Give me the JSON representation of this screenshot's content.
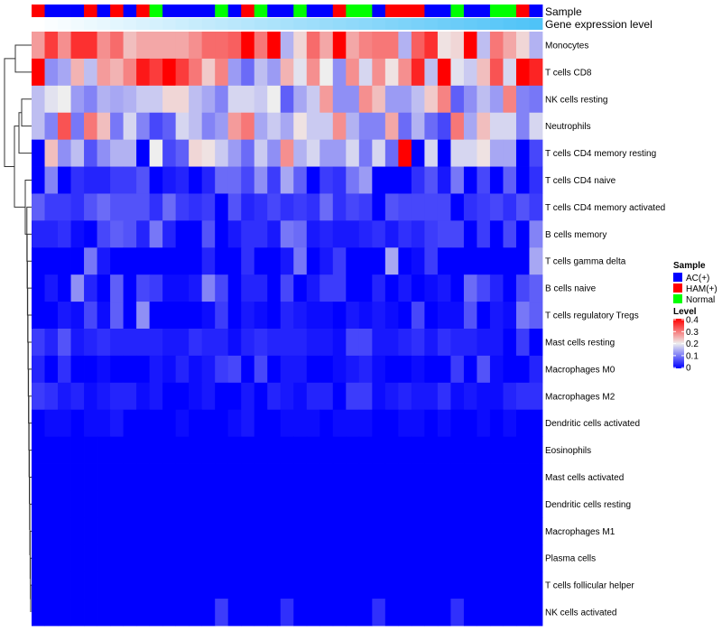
{
  "chart_data": {
    "type": "heatmap",
    "legend_position": "right",
    "annotations": {
      "sample_label": "Sample",
      "gene_label": "Gene expression level",
      "sample": [
        "HAM(+)",
        "AC(+)",
        "AC(+)",
        "AC(+)",
        "HAM(+)",
        "AC(+)",
        "HAM(+)",
        "AC(+)",
        "HAM(+)",
        "Normal",
        "AC(+)",
        "AC(+)",
        "AC(+)",
        "AC(+)",
        "Normal",
        "AC(+)",
        "HAM(+)",
        "Normal",
        "AC(+)",
        "AC(+)",
        "Normal",
        "AC(+)",
        "AC(+)",
        "HAM(+)",
        "Normal",
        "Normal",
        "AC(+)",
        "HAM(+)",
        "HAM(+)",
        "HAM(+)",
        "AC(+)",
        "AC(+)",
        "Normal",
        "AC(+)",
        "AC(+)",
        "Normal",
        "Normal",
        "HAM(+)",
        "AC(+)"
      ],
      "gene_expression_rank": [
        0,
        1,
        2,
        3,
        4,
        5,
        6,
        7,
        8,
        9,
        10,
        11,
        12,
        13,
        14,
        15,
        16,
        17,
        18,
        19,
        20,
        21,
        22,
        23,
        24,
        25,
        26,
        27,
        28,
        29,
        30,
        31,
        32,
        33,
        34,
        35,
        36,
        37,
        38
      ]
    },
    "legend": {
      "sample_title": "Sample",
      "sample_items": [
        {
          "label": "AC(+)",
          "color": "#0000FF"
        },
        {
          "label": "HAM(+)",
          "color": "#FF0000"
        },
        {
          "label": "Normal",
          "color": "#00FF00"
        }
      ],
      "level_title": "Level",
      "level_ticks": [
        "0.4",
        "0.3",
        "0.2",
        "0.1",
        "0"
      ],
      "level_range": [
        0,
        0.4
      ],
      "colors": {
        "low": "#0000FF",
        "mid": "#EEEEEE",
        "high": "#FF0000"
      }
    },
    "rows": [
      {
        "label": "Monocytes",
        "values": [
          0.27,
          0.35,
          0.28,
          0.36,
          0.36,
          0.28,
          0.31,
          0.24,
          0.26,
          0.26,
          0.26,
          0.26,
          0.28,
          0.31,
          0.31,
          0.32,
          0.4,
          0.3,
          0.4,
          0.15,
          0.22,
          0.31,
          0.26,
          0.4,
          0.26,
          0.29,
          0.3,
          0.3,
          0.15,
          0.32,
          0.36,
          0.21,
          0.22,
          0.4,
          0.16,
          0.3,
          0.26,
          0.22,
          0.15
        ]
      },
      {
        "label": "T cells CD8",
        "values": [
          0.4,
          0.12,
          0.14,
          0.25,
          0.16,
          0.27,
          0.25,
          0.29,
          0.38,
          0.35,
          0.4,
          0.35,
          0.3,
          0.23,
          0.29,
          0.13,
          0.09,
          0.16,
          0.13,
          0.25,
          0.19,
          0.28,
          0.2,
          0.12,
          0.28,
          0.18,
          0.28,
          0.21,
          0.28,
          0.37,
          0.16,
          0.4,
          0.19,
          0.17,
          0.24,
          0.33,
          0.18,
          0.4,
          0.37
        ]
      },
      {
        "label": "NK cells resting",
        "values": [
          0.16,
          0.19,
          0.2,
          0.13,
          0.11,
          0.15,
          0.14,
          0.15,
          0.17,
          0.17,
          0.22,
          0.22,
          0.16,
          0.14,
          0.11,
          0.18,
          0.18,
          0.17,
          0.2,
          0.08,
          0.14,
          0.17,
          0.27,
          0.12,
          0.12,
          0.28,
          0.24,
          0.13,
          0.13,
          0.16,
          0.23,
          0.29,
          0.08,
          0.12,
          0.16,
          0.13,
          0.29,
          0.11,
          0.1
        ]
      },
      {
        "label": "Neutrophils",
        "values": [
          0.16,
          0.11,
          0.33,
          0.1,
          0.3,
          0.24,
          0.1,
          0.18,
          0.11,
          0.06,
          0.08,
          0.18,
          0.16,
          0.11,
          0.13,
          0.27,
          0.3,
          0.14,
          0.17,
          0.14,
          0.21,
          0.17,
          0.17,
          0.28,
          0.15,
          0.11,
          0.11,
          0.26,
          0.09,
          0.15,
          0.09,
          0.06,
          0.3,
          0.14,
          0.24,
          0.18,
          0.18,
          0.11,
          0.18
        ]
      },
      {
        "label": "T cells CD4 memory resting",
        "values": [
          0,
          0.24,
          0.12,
          0.16,
          0.07,
          0.12,
          0.15,
          0.15,
          0,
          0.2,
          0.06,
          0.08,
          0.22,
          0.21,
          0.17,
          0.13,
          0.09,
          0.17,
          0.12,
          0.28,
          0.15,
          0.18,
          0.13,
          0.13,
          0.18,
          0.1,
          0.18,
          0.09,
          0.4,
          0,
          0.18,
          0,
          0.18,
          0.18,
          0.21,
          0.14,
          0.14,
          0,
          0.06
        ]
      },
      {
        "label": "T cells CD4 naive",
        "values": [
          0,
          0.11,
          0,
          0.04,
          0.03,
          0.03,
          0.05,
          0.05,
          0.07,
          0,
          0.02,
          0.03,
          0,
          0.03,
          0.09,
          0.09,
          0.06,
          0.12,
          0.05,
          0.14,
          0.08,
          0,
          0.05,
          0.04,
          0.1,
          0.13,
          0,
          0,
          0,
          0.04,
          0.07,
          0.02,
          0.1,
          0,
          0.06,
          0,
          0.08,
          0,
          0.04
        ]
      },
      {
        "label": "T cells CD4 memory activated",
        "values": [
          0.08,
          0.05,
          0.05,
          0.04,
          0.07,
          0.09,
          0.07,
          0.07,
          0.07,
          0.04,
          0.09,
          0.05,
          0.04,
          0.05,
          0,
          0.07,
          0.03,
          0.04,
          0.06,
          0.04,
          0.05,
          0.04,
          0.09,
          0.04,
          0.06,
          0.05,
          0,
          0.07,
          0.06,
          0.06,
          0.06,
          0.06,
          0,
          0.04,
          0.05,
          0.06,
          0.04,
          0.07,
          0.05
        ]
      },
      {
        "label": "B cells memory",
        "values": [
          0.03,
          0.03,
          0.04,
          0.01,
          0,
          0.06,
          0.08,
          0.07,
          0.03,
          0.1,
          0.03,
          0,
          0,
          0.07,
          0,
          0.02,
          0.04,
          0.04,
          0.02,
          0.1,
          0.09,
          0.02,
          0.03,
          0.02,
          0.02,
          0.03,
          0.04,
          0.02,
          0.04,
          0.03,
          0.05,
          0.06,
          0.06,
          0,
          0.05,
          0,
          0.06,
          0,
          0.11
        ]
      },
      {
        "label": "T cells gamma delta",
        "values": [
          0,
          0,
          0,
          0,
          0.1,
          0.02,
          0,
          0,
          0,
          0,
          0,
          0,
          0,
          0.03,
          0,
          0,
          0.04,
          0,
          0,
          0.02,
          0.1,
          0,
          0.02,
          0.05,
          0,
          0,
          0,
          0.14,
          0,
          0.01,
          0.05,
          0,
          0,
          0,
          0,
          0,
          0,
          0,
          0.14
        ]
      },
      {
        "label": "B cells naive",
        "values": [
          0,
          0.02,
          0,
          0.12,
          0.03,
          0,
          0.08,
          0,
          0.06,
          0.05,
          0.01,
          0.01,
          0.02,
          0.11,
          0.06,
          0,
          0.03,
          0.03,
          0,
          0.06,
          0,
          0.02,
          0.05,
          0.05,
          0,
          0,
          0.03,
          0,
          0.02,
          0,
          0.01,
          0.02,
          0,
          0.09,
          0.06,
          0.03,
          0,
          0.06,
          0.08
        ]
      },
      {
        "label": "T cells regulatory  Tregs",
        "values": [
          0,
          0,
          0.02,
          0.01,
          0.06,
          0.01,
          0.08,
          0,
          0.12,
          0,
          0,
          0,
          0,
          0.01,
          0.05,
          0,
          0.02,
          0.01,
          0,
          0.03,
          0.02,
          0.01,
          0.01,
          0,
          0.02,
          0.01,
          0.02,
          0.01,
          0,
          0.06,
          0,
          0.01,
          0.01,
          0.07,
          0,
          0.02,
          0.01,
          0.1,
          0.08
        ]
      },
      {
        "label": "Mast cells resting",
        "values": [
          0.05,
          0.03,
          0.07,
          0.02,
          0.03,
          0.04,
          0.03,
          0.03,
          0.03,
          0.03,
          0.02,
          0.02,
          0.04,
          0.03,
          0.03,
          0.01,
          0.03,
          0.04,
          0.03,
          0.03,
          0.03,
          0.02,
          0.02,
          0.01,
          0.06,
          0.06,
          0.02,
          0.02,
          0.03,
          0.04,
          0.02,
          0.04,
          0.03,
          0.03,
          0.02,
          0.02,
          0,
          0.05,
          0
        ]
      },
      {
        "label": "Macrophages M0",
        "values": [
          0.03,
          0,
          0.04,
          0,
          0,
          0.01,
          0,
          0,
          0,
          0.02,
          0.01,
          0.03,
          0.01,
          0.02,
          0.05,
          0.06,
          0,
          0.06,
          0,
          0.02,
          0.02,
          0,
          0,
          0.01,
          0.02,
          0.03,
          0.01,
          0,
          0,
          0.01,
          0,
          0,
          0.05,
          0,
          0.07,
          0.01,
          0,
          0,
          0.03
        ]
      },
      {
        "label": "Macrophages M2",
        "values": [
          0.05,
          0.04,
          0.02,
          0.03,
          0.01,
          0.02,
          0.03,
          0.03,
          0.01,
          0.02,
          0,
          0,
          0.01,
          0.02,
          0,
          0,
          0.02,
          0,
          0.03,
          0.02,
          0.01,
          0.03,
          0.03,
          0,
          0.05,
          0.05,
          0.01,
          0.02,
          0.03,
          0.02,
          0.02,
          0.04,
          0.01,
          0.02,
          0.01,
          0.01,
          0.03,
          0.04,
          0.04
        ]
      },
      {
        "label": "Dendritic cells activated",
        "values": [
          0,
          0.01,
          0.01,
          0,
          0.01,
          0.01,
          0.02,
          0,
          0,
          0,
          0,
          0.01,
          0,
          0,
          0,
          0.01,
          0.02,
          0,
          0,
          0.01,
          0.01,
          0.01,
          0,
          0.01,
          0.01,
          0.01,
          0,
          0,
          0.01,
          0.01,
          0,
          0.01,
          0,
          0,
          0.01,
          0,
          0.01,
          0,
          0
        ]
      },
      {
        "label": "Eosinophils",
        "values": [
          0,
          0,
          0,
          0,
          0,
          0,
          0,
          0,
          0,
          0,
          0,
          0,
          0,
          0,
          0,
          0,
          0,
          0,
          0,
          0,
          0,
          0,
          0,
          0,
          0,
          0,
          0,
          0,
          0,
          0,
          0,
          0,
          0,
          0,
          0,
          0,
          0,
          0,
          0
        ]
      },
      {
        "label": "Mast cells activated",
        "values": [
          0,
          0,
          0,
          0,
          0,
          0,
          0,
          0,
          0,
          0,
          0,
          0,
          0,
          0,
          0,
          0,
          0,
          0,
          0,
          0,
          0,
          0,
          0,
          0,
          0,
          0,
          0,
          0,
          0,
          0,
          0,
          0,
          0,
          0,
          0,
          0,
          0,
          0,
          0
        ]
      },
      {
        "label": "Dendritic cells resting",
        "values": [
          0,
          0,
          0,
          0,
          0,
          0,
          0,
          0,
          0,
          0,
          0,
          0,
          0,
          0,
          0,
          0,
          0,
          0,
          0,
          0,
          0,
          0,
          0,
          0,
          0,
          0,
          0,
          0,
          0,
          0,
          0,
          0,
          0,
          0,
          0,
          0,
          0,
          0,
          0
        ]
      },
      {
        "label": "Macrophages M1",
        "values": [
          0,
          0,
          0,
          0,
          0,
          0,
          0,
          0,
          0,
          0,
          0,
          0,
          0,
          0,
          0,
          0,
          0,
          0,
          0,
          0,
          0,
          0,
          0,
          0,
          0,
          0,
          0,
          0,
          0,
          0,
          0,
          0,
          0,
          0,
          0,
          0,
          0,
          0,
          0
        ]
      },
      {
        "label": "Plasma cells",
        "values": [
          0,
          0,
          0,
          0,
          0,
          0,
          0,
          0,
          0,
          0,
          0,
          0,
          0,
          0,
          0,
          0,
          0,
          0,
          0,
          0,
          0,
          0,
          0,
          0,
          0,
          0,
          0,
          0,
          0,
          0,
          0,
          0,
          0,
          0,
          0,
          0,
          0,
          0,
          0
        ]
      },
      {
        "label": "T cells follicular helper",
        "values": [
          0,
          0,
          0,
          0,
          0,
          0,
          0,
          0,
          0,
          0,
          0,
          0,
          0,
          0,
          0,
          0,
          0,
          0,
          0,
          0,
          0,
          0,
          0,
          0,
          0,
          0,
          0,
          0,
          0,
          0,
          0,
          0,
          0,
          0,
          0,
          0,
          0,
          0,
          0
        ]
      },
      {
        "label": "NK cells activated",
        "values": [
          0,
          0,
          0,
          0,
          0,
          0,
          0,
          0,
          0,
          0,
          0,
          0,
          0,
          0,
          0.05,
          0,
          0,
          0,
          0,
          0.04,
          0,
          0,
          0,
          0,
          0,
          0,
          0.04,
          0,
          0,
          0,
          0,
          0,
          0.04,
          0,
          0,
          0,
          0,
          0,
          0
        ]
      }
    ]
  }
}
